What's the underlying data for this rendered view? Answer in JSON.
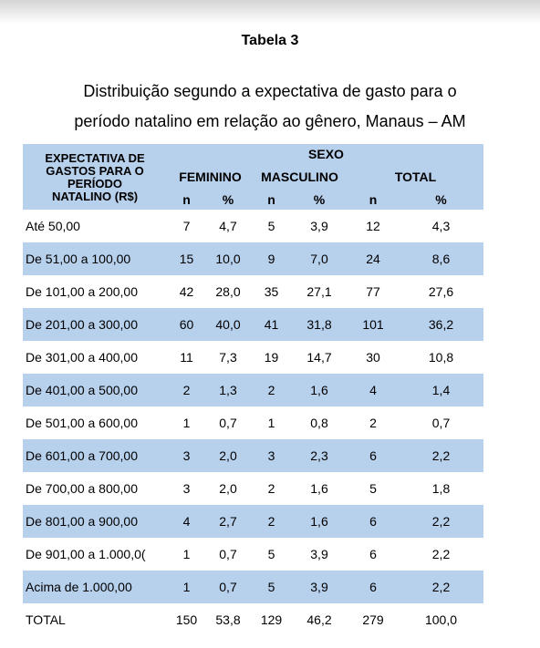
{
  "title": "Tabela 3",
  "subtitle_line1": "Distribuição segundo a expectativa de gasto para o",
  "subtitle_line2": "período natalino em relação ao gênero, Manaus – AM",
  "header": {
    "corner": [
      "EXPECTATIVA DE",
      "GASTOS PARA O",
      "PERÍODO",
      "NATALINO (R$)"
    ],
    "sexo": "SEXO",
    "feminino": "FEMININO",
    "masculino": "MASCULINO",
    "total": "TOTAL",
    "n": "n",
    "pct": "%"
  },
  "rows": [
    {
      "label": "Até 50,00",
      "fn": "7",
      "fp": "4,7",
      "mn": "5",
      "mp": "3,9",
      "tn": "12",
      "tp": "4,3"
    },
    {
      "label": "De 51,00 a 100,00",
      "fn": "15",
      "fp": "10,0",
      "mn": "9",
      "mp": "7,0",
      "tn": "24",
      "tp": "8,6"
    },
    {
      "label": "De 101,00 a 200,00",
      "fn": "42",
      "fp": "28,0",
      "mn": "35",
      "mp": "27,1",
      "tn": "77",
      "tp": "27,6"
    },
    {
      "label": "De 201,00 a 300,00",
      "fn": "60",
      "fp": "40,0",
      "mn": "41",
      "mp": "31,8",
      "tn": "101",
      "tp": "36,2"
    },
    {
      "label": "De 301,00 a 400,00",
      "fn": "11",
      "fp": "7,3",
      "mn": "19",
      "mp": "14,7",
      "tn": "30",
      "tp": "10,8"
    },
    {
      "label": "De 401,00 a 500,00",
      "fn": "2",
      "fp": "1,3",
      "mn": "2",
      "mp": "1,6",
      "tn": "4",
      "tp": "1,4"
    },
    {
      "label": "De 501,00 a 600,00",
      "fn": "1",
      "fp": "0,7",
      "mn": "1",
      "mp": "0,8",
      "tn": "2",
      "tp": "0,7"
    },
    {
      "label": "De 601,00 a 700,00",
      "fn": "3",
      "fp": "2,0",
      "mn": "3",
      "mp": "2,3",
      "tn": "6",
      "tp": "2,2"
    },
    {
      "label": "De 700,00 a 800,00",
      "fn": "3",
      "fp": "2,0",
      "mn": "2",
      "mp": "1,6",
      "tn": "5",
      "tp": "1,8"
    },
    {
      "label": "De 801,00 a 900,00",
      "fn": "4",
      "fp": "2,7",
      "mn": "2",
      "mp": "1,6",
      "tn": "6",
      "tp": "2,2"
    },
    {
      "label": "De 901,00 a 1.000,0(",
      "fn": "1",
      "fp": "0,7",
      "mn": "5",
      "mp": "3,9",
      "tn": "6",
      "tp": "2,2"
    },
    {
      "label": "Acima de 1.000,00",
      "fn": "1",
      "fp": "0,7",
      "mn": "5",
      "mp": "3,9",
      "tn": "6",
      "tp": "2,2"
    },
    {
      "label": "TOTAL",
      "fn": "150",
      "fp": "53,8",
      "mn": "129",
      "mp": "46,2",
      "tn": "279",
      "tp": "100,0"
    }
  ],
  "colors": {
    "header_bg": "#b7d0ec",
    "stripe_bg": "#b7d0ec"
  }
}
